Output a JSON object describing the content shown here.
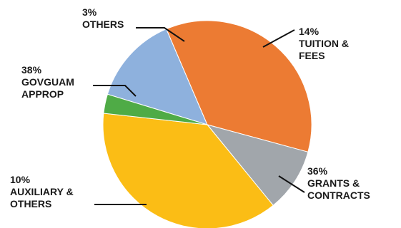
{
  "chart_data": {
    "type": "pie",
    "slices": [
      {
        "pct": 14,
        "lines": [
          "14%",
          "TUITION &",
          "FEES"
        ],
        "color": "#8eb1dd"
      },
      {
        "pct": 36,
        "lines": [
          "36%",
          "GRANTS &",
          "CONTRACTS"
        ],
        "color": "#ec7b33"
      },
      {
        "pct": 10,
        "lines": [
          "10%",
          "AUXILIARY &",
          "OTHERS"
        ],
        "color": "#a1a6ab"
      },
      {
        "pct": 38,
        "lines": [
          "38%",
          "GOVGUAM",
          "APPROP"
        ],
        "color": "#fbbd15"
      },
      {
        "pct": 3,
        "lines": [
          "3%",
          "OTHERS"
        ],
        "color": "#4fab46"
      }
    ]
  }
}
